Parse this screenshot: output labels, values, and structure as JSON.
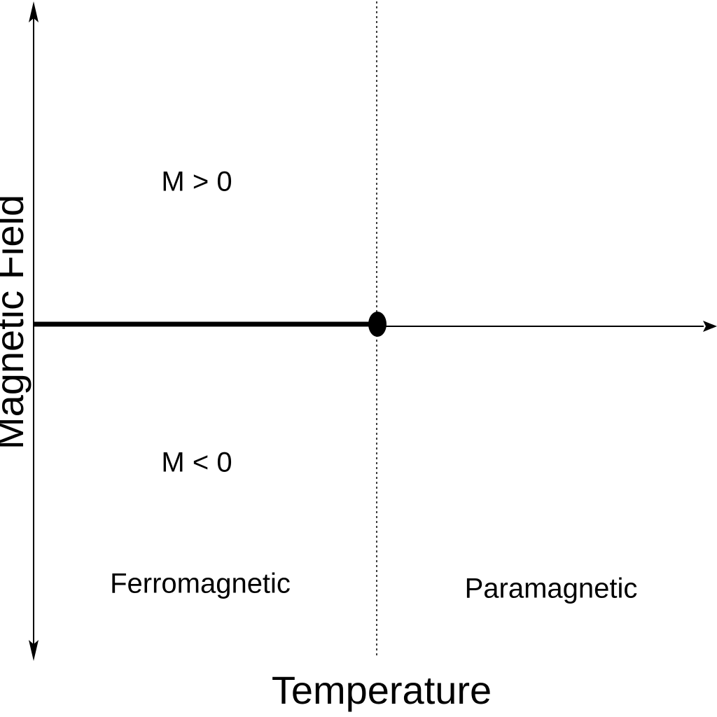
{
  "axes": {
    "y_label": "Magnetic Field",
    "x_label": "Temperature"
  },
  "regions": {
    "upper": "M > 0",
    "lower": "M < 0",
    "ferro": "Ferromagnetic",
    "para": "Paramagnetic"
  },
  "colors": {
    "ink": "#000000",
    "background": "#ffffff"
  }
}
